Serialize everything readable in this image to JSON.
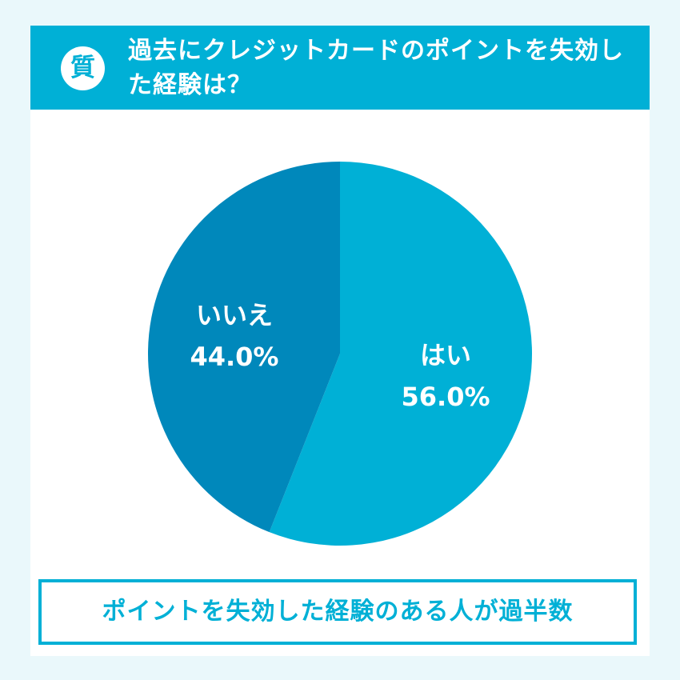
{
  "header": {
    "badge": "質",
    "title": "過去にクレジットカードのポイントを失効した経験は？"
  },
  "chart_data": {
    "type": "pie",
    "categories": [
      "はい",
      "いいえ"
    ],
    "values": [
      56.0,
      44.0
    ],
    "value_labels": [
      "56.0%",
      "44.0%"
    ],
    "colors": [
      "#00b0d6",
      "#0088bb"
    ],
    "start_angle_deg": 0,
    "direction": "clockwise",
    "legend": "none"
  },
  "conclusion": "ポイントを失効した経験のある人が過半数",
  "colors": {
    "accent": "#00b0d6",
    "background": "#eaf8fb"
  }
}
